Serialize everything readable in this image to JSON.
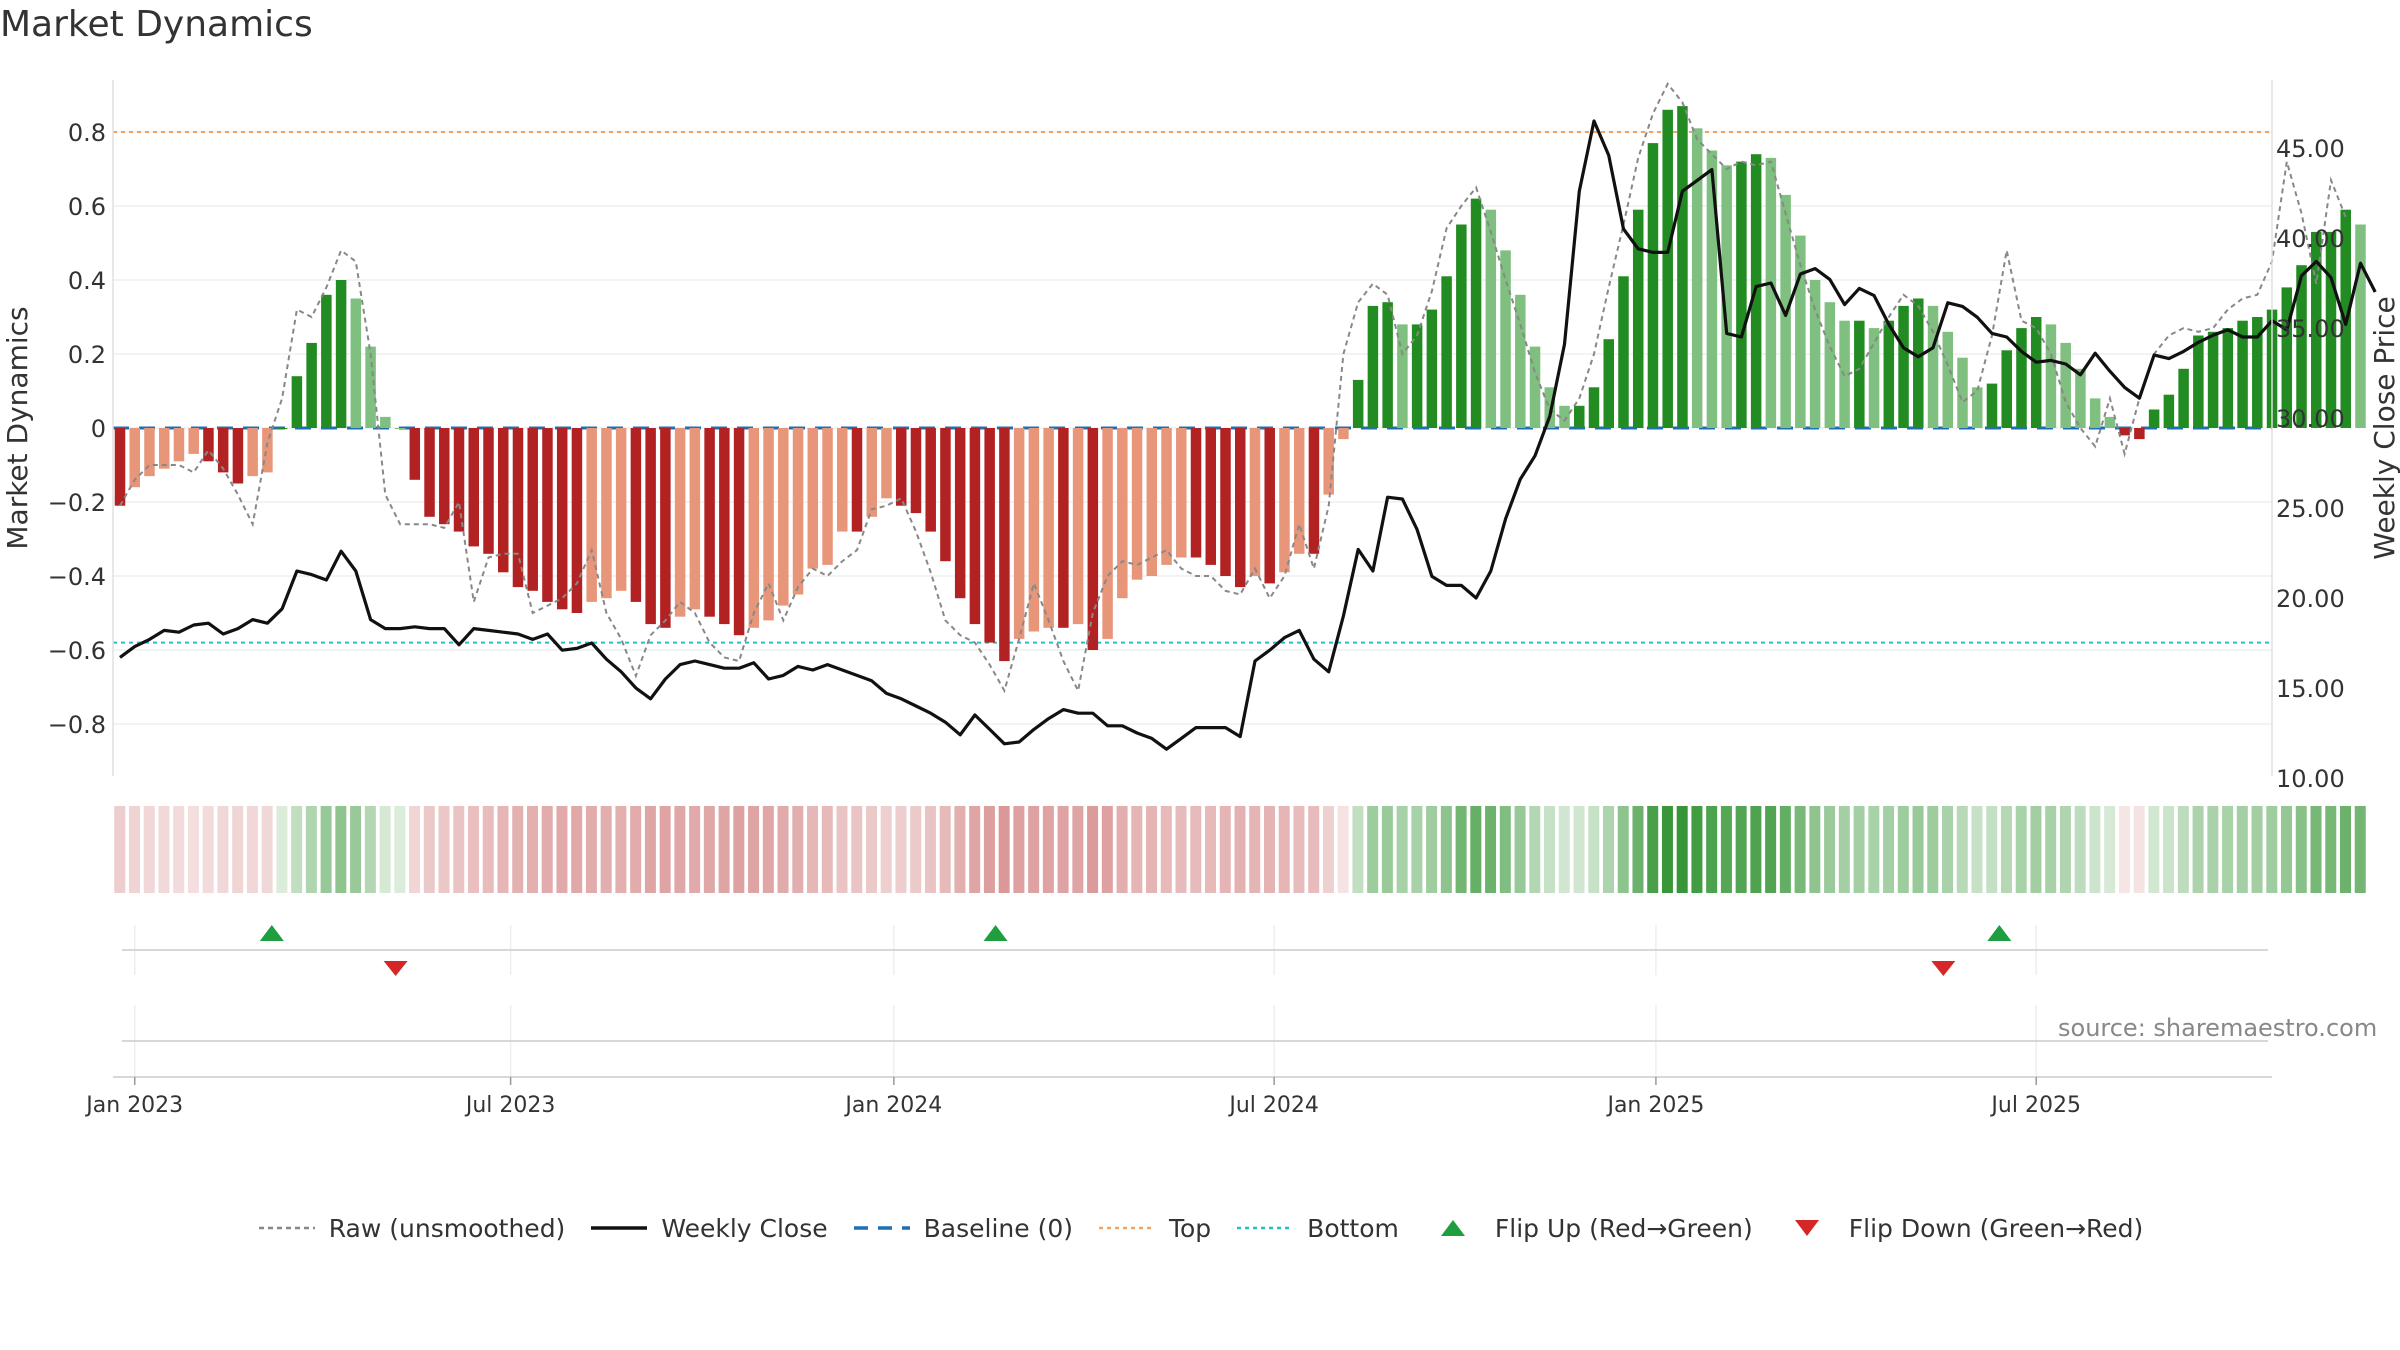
{
  "title": "Market Dynamics",
  "source": "source: sharemaestro.com",
  "colors": {
    "strong_green": "#228b22",
    "light_green": "#7fbf7f",
    "strong_red": "#b22222",
    "light_red": "#e8967a",
    "close_line": "#111111",
    "raw_line": "#888888",
    "baseline": "#1f6fb4",
    "top": "#f4a460",
    "bottom": "#20c0d0",
    "flip_up": "#1e9e3e",
    "flip_down": "#d62728"
  },
  "legend": [
    {
      "label": "Raw (unsmoothed)",
      "icon": "dotted-gray-line"
    },
    {
      "label": "Weekly Close",
      "icon": "solid-black-line"
    },
    {
      "label": "Baseline (0)",
      "icon": "dashed-blue-line"
    },
    {
      "label": "Top",
      "icon": "dotted-orange-line"
    },
    {
      "label": "Bottom",
      "icon": "dotted-cyan-line"
    },
    {
      "label": "Flip Up (Red→Green)",
      "icon": "green-up-triangle"
    },
    {
      "label": "Flip Down (Green→Red)",
      "icon": "red-down-triangle"
    }
  ],
  "chart_data": {
    "type": "bar",
    "title": "Market Dynamics",
    "ylabel": "Market Dynamics",
    "y2label": "Weekly Close Price",
    "ylim": [
      -0.92,
      0.95
    ],
    "y2lim": [
      8.5,
      48.5
    ],
    "yticks": [
      {
        "v": 0.8,
        "label": "0.8"
      },
      {
        "v": 0.6,
        "label": "0.6"
      },
      {
        "v": 0.4,
        "label": "0.4"
      },
      {
        "v": 0.2,
        "label": "0.2"
      },
      {
        "v": 0,
        "label": "0"
      },
      {
        "v": -0.2,
        "label": "−0.2"
      },
      {
        "v": -0.4,
        "label": "−0.4"
      },
      {
        "v": -0.6,
        "label": "−0.6"
      },
      {
        "v": -0.8,
        "label": "−0.8"
      }
    ],
    "y2ticks": [
      "45.00",
      "40.00",
      "35.00",
      "30.00",
      "25.00",
      "20.00",
      "15.00",
      "10.00"
    ],
    "xticks": [
      {
        "week": 1,
        "label": "Jan 2023"
      },
      {
        "week": 26.5,
        "label": "Jul 2023"
      },
      {
        "week": 52.5,
        "label": "Jan 2024"
      },
      {
        "week": 78.3,
        "label": "Jul 2024"
      },
      {
        "week": 104.2,
        "label": "Jan 2025"
      },
      {
        "week": 130,
        "label": "Jul 2025"
      }
    ],
    "top_line": 0.8,
    "bottom_line": -0.58,
    "baseline": 0,
    "grid": true,
    "legend_position": "bottom",
    "dynamics": [
      -0.21,
      -0.16,
      -0.13,
      -0.11,
      -0.09,
      -0.07,
      -0.09,
      -0.12,
      -0.15,
      -0.13,
      -0.12,
      0.0,
      0.14,
      0.23,
      0.36,
      0.4,
      0.35,
      0.22,
      0.03,
      0.0,
      -0.14,
      -0.24,
      -0.26,
      -0.28,
      -0.32,
      -0.34,
      -0.39,
      -0.43,
      -0.44,
      -0.47,
      -0.49,
      -0.5,
      -0.47,
      -0.46,
      -0.44,
      -0.47,
      -0.53,
      -0.54,
      -0.51,
      -0.49,
      -0.51,
      -0.53,
      -0.56,
      -0.54,
      -0.52,
      -0.48,
      -0.45,
      -0.38,
      -0.37,
      -0.28,
      -0.28,
      -0.24,
      -0.19,
      -0.21,
      -0.23,
      -0.28,
      -0.36,
      -0.46,
      -0.53,
      -0.58,
      -0.63,
      -0.57,
      -0.55,
      -0.54,
      -0.54,
      -0.53,
      -0.6,
      -0.57,
      -0.46,
      -0.41,
      -0.4,
      -0.37,
      -0.35,
      -0.35,
      -0.37,
      -0.4,
      -0.43,
      -0.4,
      -0.42,
      -0.39,
      -0.34,
      -0.34,
      -0.18,
      -0.03,
      0.13,
      0.33,
      0.34,
      0.28,
      0.28,
      0.32,
      0.41,
      0.55,
      0.62,
      0.59,
      0.48,
      0.36,
      0.22,
      0.11,
      0.06,
      0.06,
      0.11,
      0.24,
      0.41,
      0.59,
      0.77,
      0.86,
      0.87,
      0.81,
      0.75,
      0.71,
      0.72,
      0.74,
      0.73,
      0.63,
      0.52,
      0.4,
      0.34,
      0.29,
      0.29,
      0.27,
      0.29,
      0.33,
      0.35,
      0.33,
      0.26,
      0.19,
      0.11,
      0.12,
      0.21,
      0.27,
      0.3,
      0.28,
      0.23,
      0.16,
      0.08,
      0.03,
      -0.02,
      -0.03,
      0.05,
      0.09,
      0.16,
      0.25,
      0.26,
      0.27,
      0.29,
      0.3,
      0.32,
      0.38,
      0.44,
      0.53,
      0.53,
      0.59,
      0.55
    ],
    "raw": [
      -0.21,
      -0.14,
      -0.1,
      -0.1,
      -0.1,
      -0.12,
      -0.06,
      -0.11,
      -0.18,
      -0.26,
      -0.04,
      0.08,
      0.32,
      0.3,
      0.38,
      0.48,
      0.45,
      0.2,
      -0.18,
      -0.26,
      -0.26,
      -0.26,
      -0.27,
      -0.2,
      -0.47,
      -0.35,
      -0.34,
      -0.34,
      -0.5,
      -0.48,
      -0.46,
      -0.42,
      -0.33,
      -0.5,
      -0.57,
      -0.67,
      -0.56,
      -0.52,
      -0.47,
      -0.5,
      -0.58,
      -0.62,
      -0.63,
      -0.5,
      -0.42,
      -0.52,
      -0.43,
      -0.38,
      -0.4,
      -0.36,
      -0.33,
      -0.22,
      -0.21,
      -0.19,
      -0.28,
      -0.39,
      -0.52,
      -0.56,
      -0.58,
      -0.64,
      -0.71,
      -0.57,
      -0.42,
      -0.52,
      -0.63,
      -0.71,
      -0.5,
      -0.4,
      -0.36,
      -0.37,
      -0.35,
      -0.33,
      -0.38,
      -0.4,
      -0.4,
      -0.44,
      -0.45,
      -0.38,
      -0.46,
      -0.4,
      -0.26,
      -0.38,
      -0.21,
      0.2,
      0.34,
      0.39,
      0.36,
      0.2,
      0.25,
      0.37,
      0.54,
      0.6,
      0.65,
      0.53,
      0.4,
      0.28,
      0.15,
      0.05,
      0.02,
      0.08,
      0.2,
      0.38,
      0.55,
      0.73,
      0.85,
      0.93,
      0.88,
      0.78,
      0.74,
      0.7,
      0.72,
      0.71,
      0.72,
      0.58,
      0.44,
      0.32,
      0.22,
      0.14,
      0.16,
      0.23,
      0.3,
      0.36,
      0.33,
      0.26,
      0.17,
      0.07,
      0.1,
      0.25,
      0.48,
      0.29,
      0.27,
      0.2,
      0.07,
      0.0,
      -0.05,
      0.08,
      -0.07,
      0.08,
      0.2,
      0.25,
      0.27,
      0.26,
      0.27,
      0.32,
      0.35,
      0.36,
      0.45,
      0.72,
      0.58,
      0.39,
      0.67,
      0.57
    ],
    "weekly_close": [
      16.7,
      17.3,
      17.7,
      18.2,
      18.1,
      18.5,
      18.6,
      18.0,
      18.3,
      18.8,
      18.6,
      19.4,
      21.5,
      21.3,
      21.0,
      22.6,
      21.5,
      18.8,
      18.3,
      18.3,
      18.4,
      18.3,
      18.3,
      17.4,
      18.3,
      18.2,
      18.1,
      18.0,
      17.7,
      18.0,
      17.1,
      17.2,
      17.5,
      16.6,
      15.9,
      15.0,
      14.4,
      15.5,
      16.3,
      16.5,
      16.3,
      16.1,
      16.1,
      16.4,
      15.5,
      15.7,
      16.2,
      16.0,
      16.3,
      16.0,
      15.7,
      15.4,
      14.7,
      14.4,
      14.0,
      13.6,
      13.1,
      12.4,
      13.5,
      12.7,
      11.9,
      12.0,
      12.7,
      13.3,
      13.8,
      13.6,
      13.6,
      12.9,
      12.9,
      12.5,
      12.2,
      11.6,
      12.2,
      12.8,
      12.8,
      12.8,
      12.3,
      16.5,
      17.1,
      17.8,
      18.2,
      16.6,
      15.9,
      19.0,
      22.7,
      21.5,
      25.6,
      25.5,
      23.8,
      21.2,
      20.7,
      20.7,
      20.0,
      21.5,
      24.4,
      26.6,
      27.9,
      30.1,
      34.1,
      42.6,
      46.5,
      44.6,
      40.5,
      39.4,
      39.2,
      39.2,
      42.6,
      43.2,
      43.8,
      34.7,
      34.5,
      37.3,
      37.5,
      35.7,
      38.0,
      38.3,
      37.7,
      36.3,
      37.2,
      36.8,
      35.2,
      33.9,
      33.4,
      33.9,
      36.4,
      36.2,
      35.6,
      34.7,
      34.5,
      33.7,
      33.1,
      33.2,
      33.0,
      32.4,
      33.6,
      32.6,
      31.7,
      31.1,
      33.5,
      33.3,
      33.7,
      34.2,
      34.6,
      34.9,
      34.5,
      34.5,
      35.4,
      34.9,
      37.9,
      38.7,
      37.8,
      35.2,
      38.6,
      37.0
    ],
    "flip_up_weeks": [
      10.3,
      59.4,
      127.5
    ],
    "flip_down_weeks": [
      18.7,
      123.7
    ]
  }
}
